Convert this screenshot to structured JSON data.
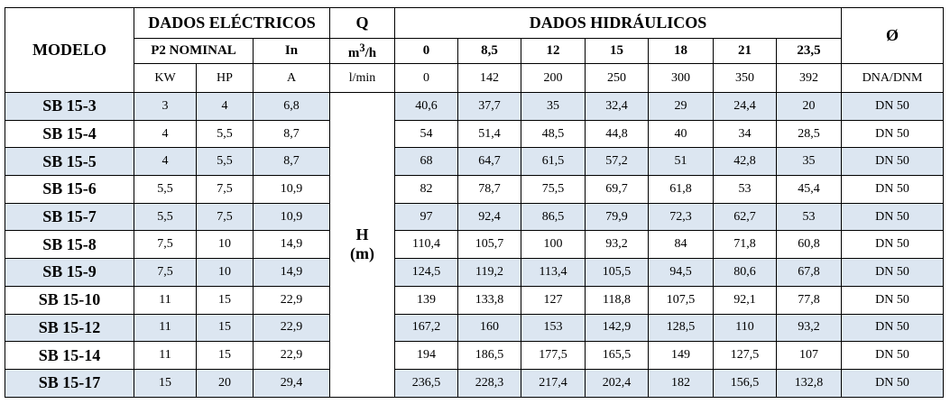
{
  "header": {
    "model": "MODELO",
    "electrical": "DADOS ELÉCTRICOS",
    "q": "Q",
    "hydraulic": "DADOS HIDRÁULICOS",
    "p2": "P2 NOMINAL",
    "in": "In",
    "q_unit": {
      "base": "m",
      "sup": "3",
      "rest": "/h"
    },
    "diameter": "Ø",
    "flows_m3h": [
      "0",
      "8,5",
      "12",
      "15",
      "18",
      "21",
      "23,5"
    ],
    "units": [
      "KW",
      "HP",
      "A",
      "l/min"
    ],
    "flows_lmin": [
      "0",
      "142",
      "200",
      "250",
      "300",
      "350",
      "392"
    ],
    "dn_unit": "DNA/DNM",
    "head": [
      "H",
      "(m)"
    ]
  },
  "rows": [
    [
      "SB 15-3",
      "3",
      "4",
      "6,8",
      "40,6",
      "37,7",
      "35",
      "32,4",
      "29",
      "24,4",
      "20",
      "DN 50"
    ],
    [
      "SB 15-4",
      "4",
      "5,5",
      "8,7",
      "54",
      "51,4",
      "48,5",
      "44,8",
      "40",
      "34",
      "28,5",
      "DN 50"
    ],
    [
      "SB 15-5",
      "4",
      "5,5",
      "8,7",
      "68",
      "64,7",
      "61,5",
      "57,2",
      "51",
      "42,8",
      "35",
      "DN 50"
    ],
    [
      "SB 15-6",
      "5,5",
      "7,5",
      "10,9",
      "82",
      "78,7",
      "75,5",
      "69,7",
      "61,8",
      "53",
      "45,4",
      "DN 50"
    ],
    [
      "SB 15-7",
      "5,5",
      "7,5",
      "10,9",
      "97",
      "92,4",
      "86,5",
      "79,9",
      "72,3",
      "62,7",
      "53",
      "DN 50"
    ],
    [
      "SB 15-8",
      "7,5",
      "10",
      "14,9",
      "110,4",
      "105,7",
      "100",
      "93,2",
      "84",
      "71,8",
      "60,8",
      "DN 50"
    ],
    [
      "SB 15-9",
      "7,5",
      "10",
      "14,9",
      "124,5",
      "119,2",
      "113,4",
      "105,5",
      "94,5",
      "80,6",
      "67,8",
      "DN 50"
    ],
    [
      "SB 15-10",
      "11",
      "15",
      "22,9",
      "139",
      "133,8",
      "127",
      "118,8",
      "107,5",
      "92,1",
      "77,8",
      "DN 50"
    ],
    [
      "SB 15-12",
      "11",
      "15",
      "22,9",
      "167,2",
      "160",
      "153",
      "142,9",
      "128,5",
      "110",
      "93,2",
      "DN 50"
    ],
    [
      "SB 15-14",
      "11",
      "15",
      "22,9",
      "194",
      "186,5",
      "177,5",
      "165,5",
      "149",
      "127,5",
      "107",
      "DN 50"
    ],
    [
      "SB 15-17",
      "15",
      "20",
      "29,4",
      "236,5",
      "228,3",
      "217,4",
      "202,4",
      "182",
      "156,5",
      "132,8",
      "DN 50"
    ]
  ]
}
